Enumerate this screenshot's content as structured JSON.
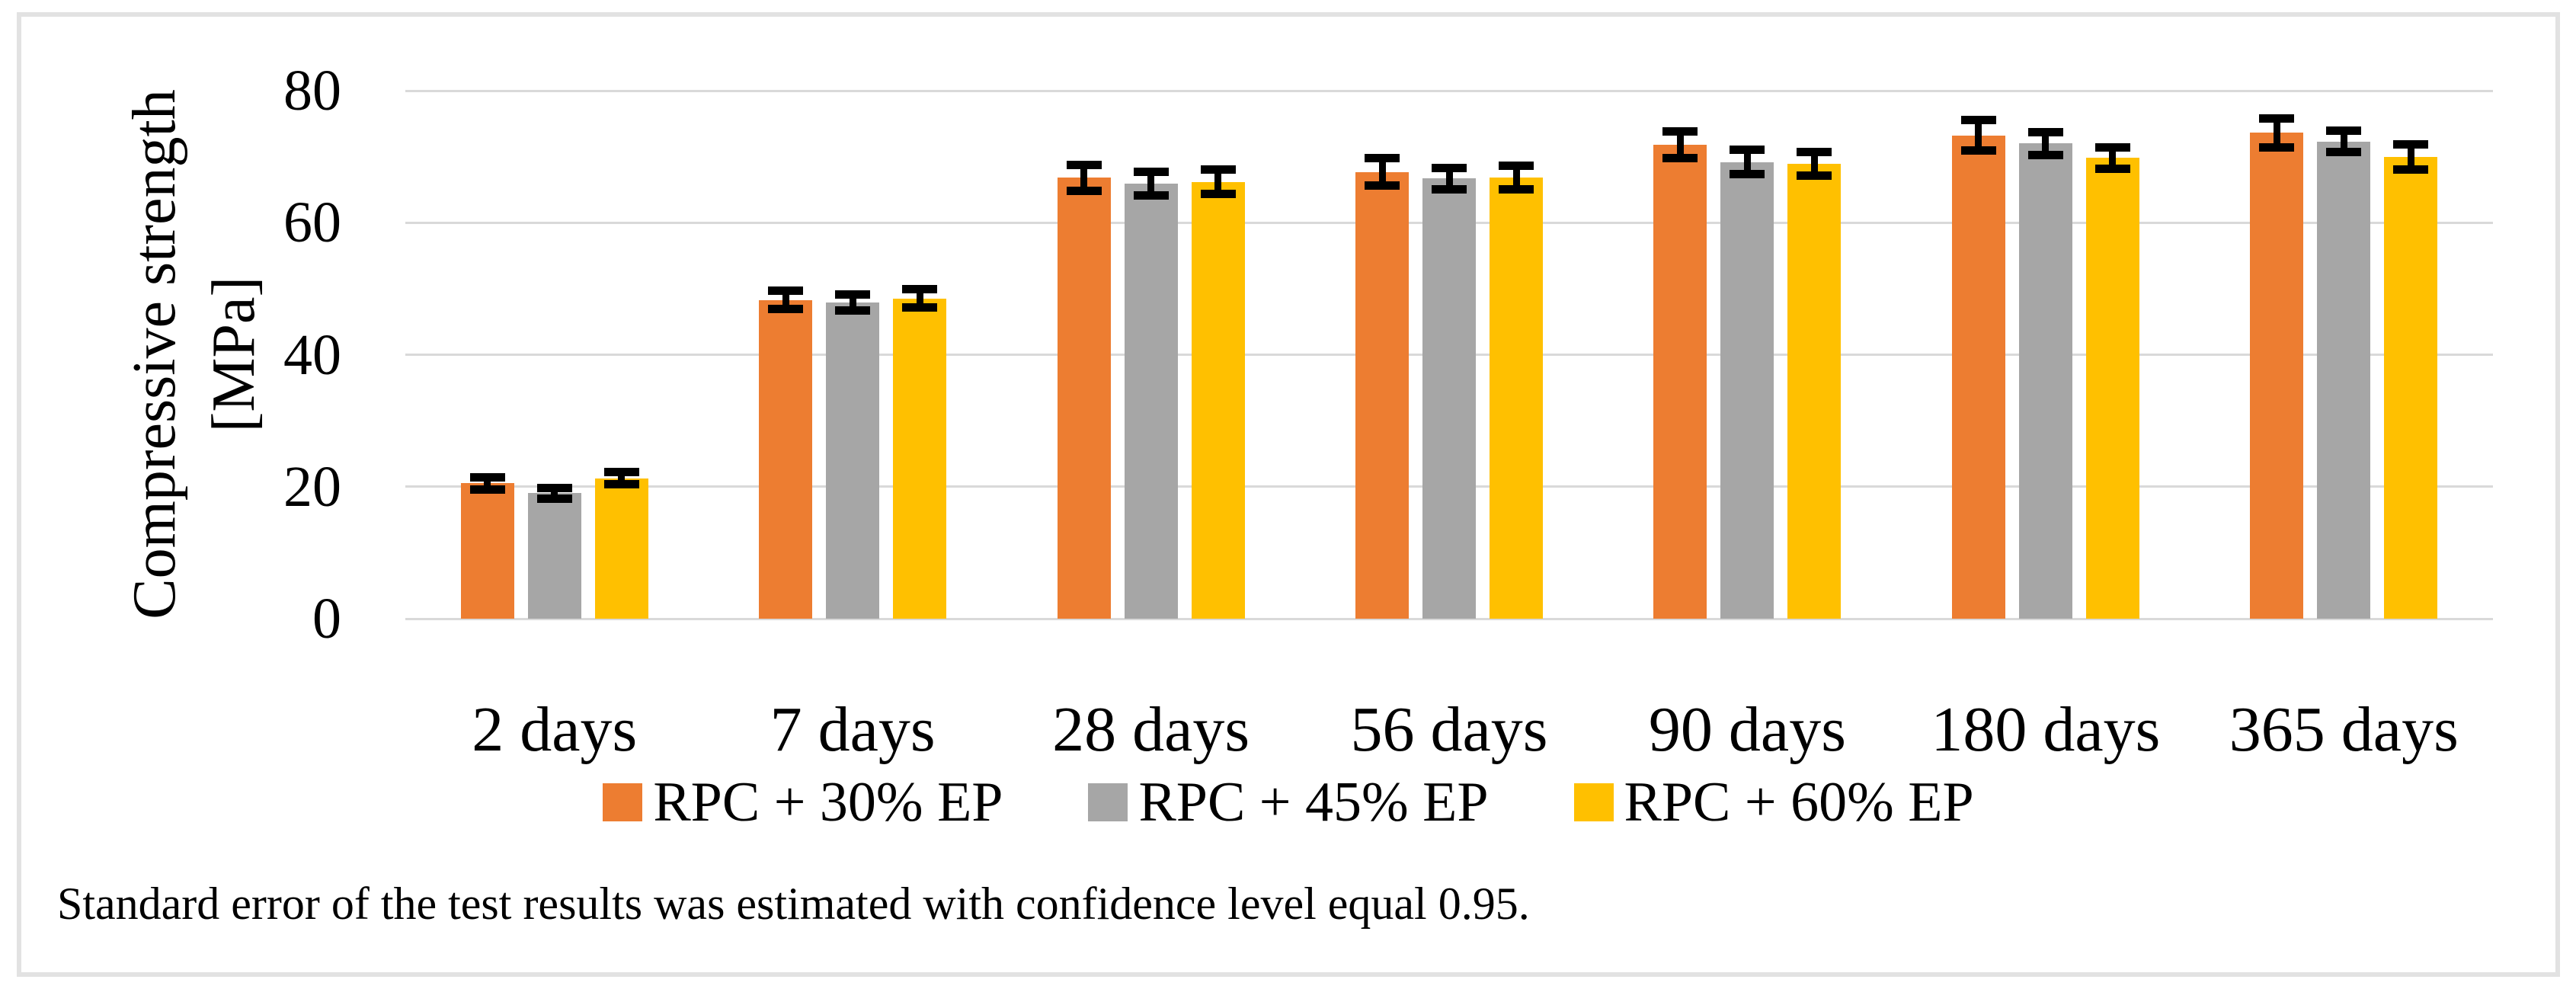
{
  "figure": {
    "note": "Standard error of the test results was estimated with confidence level equal 0.95."
  },
  "colors": {
    "series_orange": "#ED7D31",
    "series_gray": "#A6A6A6",
    "series_yellow": "#FFC000",
    "gridline": "#D9D9D9",
    "frame_border": "#E2E2E2",
    "error_bar": "#000000",
    "text": "#000000",
    "background": "#FFFFFF"
  },
  "chart_data": {
    "type": "bar",
    "title": "",
    "xlabel": "",
    "ylabel": "Compressive strength [MPa]",
    "ylabel_lines": [
      "Compressive strength",
      "[MPa]"
    ],
    "categories": [
      "2 days",
      "7 days",
      "28 days",
      "56 days",
      "90 days",
      "180 days",
      "365 days"
    ],
    "series": [
      {
        "name": "RPC + 30% EP",
        "color": "#ED7D31",
        "values": [
          20.5,
          48.3,
          66.8,
          67.7,
          71.8,
          73.2,
          73.6
        ],
        "errors": [
          0.9,
          1.4,
          2.0,
          2.1,
          2.0,
          2.3,
          2.2
        ]
      },
      {
        "name": "RPC + 45% EP",
        "color": "#A6A6A6",
        "values": [
          19.0,
          47.9,
          65.9,
          66.7,
          69.2,
          72.0,
          72.3
        ],
        "errors": [
          0.8,
          1.2,
          1.8,
          1.6,
          1.8,
          1.7,
          1.6
        ]
      },
      {
        "name": "RPC + 60% EP",
        "color": "#FFC000",
        "values": [
          21.3,
          48.5,
          66.2,
          66.8,
          68.9,
          69.8,
          70.0
        ],
        "errors": [
          0.9,
          1.4,
          1.8,
          1.8,
          1.8,
          1.6,
          1.9
        ]
      }
    ],
    "yticks": [
      0,
      20,
      40,
      60,
      80
    ],
    "ylim": [
      0,
      80
    ],
    "grid": true,
    "error_bars": true,
    "legend_position": "bottom"
  }
}
